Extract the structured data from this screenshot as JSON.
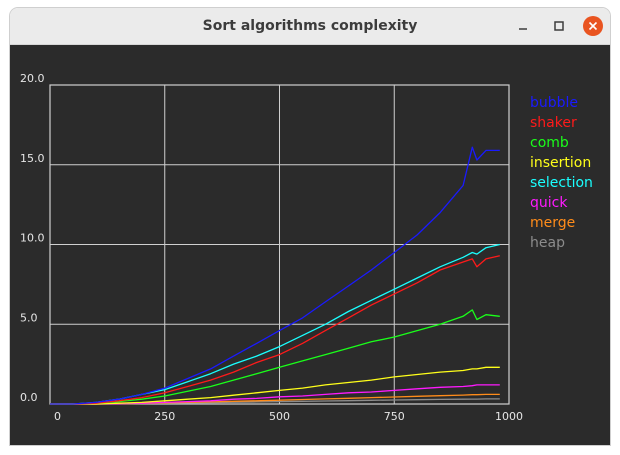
{
  "window": {
    "title": "Sort algorithms complexity",
    "minimize_icon": "minimize-icon",
    "maximize_icon": "maximize-icon",
    "close_icon": "close-icon"
  },
  "chart_data": {
    "type": "line",
    "title": "",
    "xlabel": "",
    "ylabel": "",
    "xlim": [
      0,
      1000
    ],
    "ylim": [
      0,
      20
    ],
    "x_ticks": [
      "0",
      "250",
      "500",
      "750",
      "1000"
    ],
    "y_ticks": [
      "0.0",
      "5.0",
      "10.0",
      "15.0",
      "20.0"
    ],
    "grid": true,
    "legend_position": "right",
    "background": "#2b2b2b",
    "x": [
      0,
      50,
      100,
      150,
      200,
      250,
      300,
      350,
      400,
      450,
      500,
      550,
      600,
      650,
      700,
      750,
      800,
      850,
      900,
      920,
      930,
      950,
      980
    ],
    "series": [
      {
        "name": "bubble",
        "color": "#1a1aff",
        "values": [
          0,
          0,
          0.1,
          0.3,
          0.6,
          1.0,
          1.6,
          2.2,
          3.0,
          3.8,
          4.6,
          5.4,
          6.4,
          7.4,
          8.4,
          9.5,
          10.6,
          12.0,
          13.7,
          16.1,
          15.3,
          15.9,
          15.9
        ]
      },
      {
        "name": "shaker",
        "color": "#ff1a1a",
        "values": [
          0,
          0,
          0.05,
          0.2,
          0.4,
          0.7,
          1.1,
          1.5,
          2.0,
          2.6,
          3.1,
          3.8,
          4.6,
          5.4,
          6.2,
          6.9,
          7.6,
          8.4,
          8.9,
          9.1,
          8.6,
          9.1,
          9.3
        ]
      },
      {
        "name": "comb",
        "color": "#1aff1a",
        "values": [
          0,
          0,
          0.05,
          0.15,
          0.3,
          0.5,
          0.8,
          1.1,
          1.5,
          1.9,
          2.3,
          2.7,
          3.1,
          3.5,
          3.9,
          4.2,
          4.6,
          5.0,
          5.5,
          5.9,
          5.3,
          5.6,
          5.5
        ]
      },
      {
        "name": "insertion",
        "color": "#ffff1a",
        "values": [
          0,
          0,
          0,
          0.05,
          0.1,
          0.2,
          0.3,
          0.4,
          0.55,
          0.7,
          0.85,
          1.0,
          1.2,
          1.35,
          1.5,
          1.7,
          1.85,
          2.0,
          2.1,
          2.2,
          2.2,
          2.3,
          2.3
        ]
      },
      {
        "name": "selection",
        "color": "#1affff",
        "values": [
          0,
          0,
          0.1,
          0.3,
          0.6,
          0.9,
          1.4,
          1.9,
          2.5,
          3.0,
          3.6,
          4.3,
          5.0,
          5.8,
          6.5,
          7.2,
          7.9,
          8.6,
          9.2,
          9.5,
          9.4,
          9.8,
          10.0
        ]
      },
      {
        "name": "quick",
        "color": "#ff1aff",
        "values": [
          0,
          0,
          0,
          0.02,
          0.05,
          0.1,
          0.15,
          0.2,
          0.3,
          0.35,
          0.45,
          0.5,
          0.6,
          0.7,
          0.75,
          0.85,
          0.95,
          1.05,
          1.1,
          1.15,
          1.2,
          1.2,
          1.2
        ]
      },
      {
        "name": "merge",
        "color": "#ff8c1a",
        "values": [
          0,
          0,
          0,
          0.02,
          0.04,
          0.07,
          0.1,
          0.13,
          0.17,
          0.2,
          0.24,
          0.28,
          0.32,
          0.36,
          0.4,
          0.44,
          0.48,
          0.52,
          0.56,
          0.58,
          0.58,
          0.6,
          0.6
        ]
      },
      {
        "name": "heap",
        "color": "#8c8c8c",
        "values": [
          0,
          0,
          0,
          0.01,
          0.03,
          0.05,
          0.07,
          0.09,
          0.11,
          0.13,
          0.15,
          0.17,
          0.19,
          0.21,
          0.23,
          0.25,
          0.27,
          0.29,
          0.3,
          0.31,
          0.31,
          0.32,
          0.32
        ]
      }
    ]
  }
}
